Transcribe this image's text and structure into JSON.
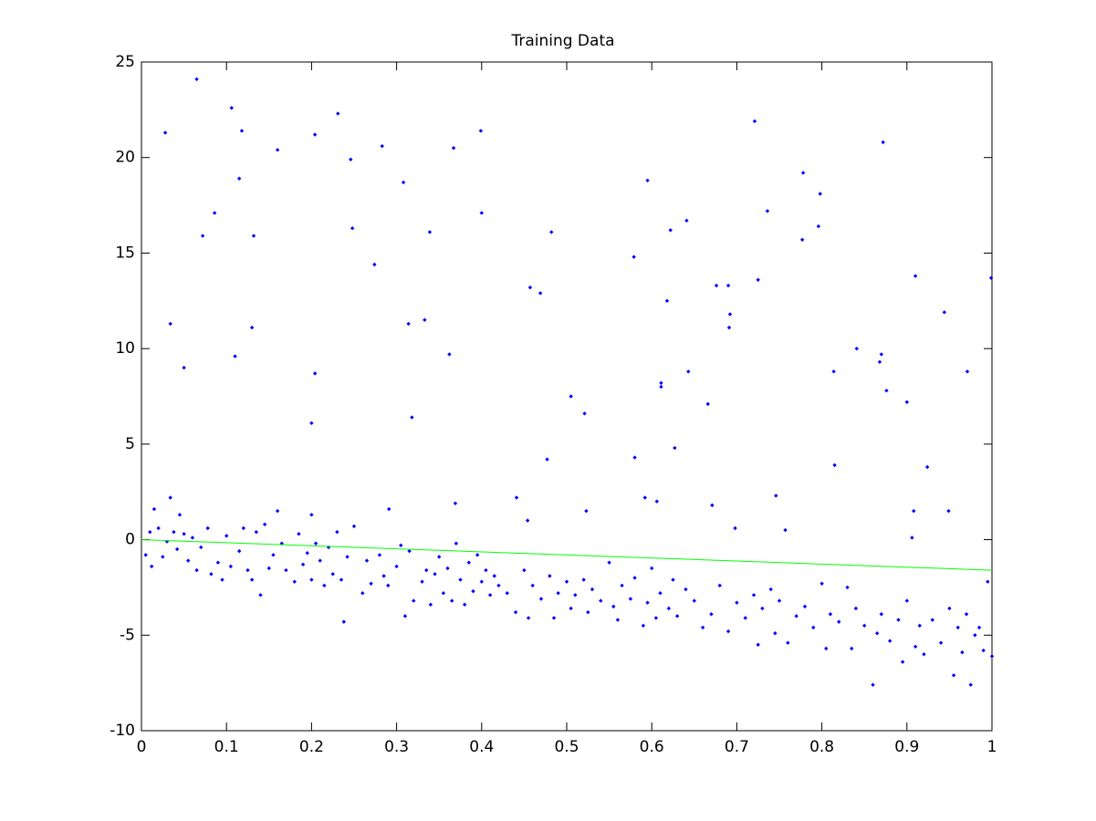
{
  "chart_data": {
    "type": "scatter",
    "title": "Training Data",
    "x": [
      0.065,
      0.028,
      0.106,
      0.118,
      0.115,
      0.086,
      0.072,
      0.132,
      0.034,
      0.05,
      0.11,
      0.13,
      0.16,
      0.204,
      0.231,
      0.246,
      0.248,
      0.283,
      0.274,
      0.308,
      0.339,
      0.333,
      0.314,
      0.318,
      0.204,
      0.2,
      0.367,
      0.399,
      0.4,
      0.362,
      0.482,
      0.457,
      0.469,
      0.477,
      0.505,
      0.521,
      0.579,
      0.595,
      0.622,
      0.641,
      0.618,
      0.611,
      0.611,
      0.643,
      0.627,
      0.58,
      0.666,
      0.676,
      0.69,
      0.692,
      0.691,
      0.721,
      0.725,
      0.736,
      0.778,
      0.777,
      0.798,
      0.796,
      0.814,
      0.815,
      0.841,
      0.872,
      0.87,
      0.868,
      0.876,
      0.91,
      0.944,
      0.9,
      0.924,
      0.971,
      0.999,
      0.671,
      0.698,
      0.746,
      0.757,
      0.908,
      0.906,
      0.949,
      0.606,
      0.592,
      0.523,
      0.454,
      0.441,
      0.369,
      0.034,
      0.2,
      0.291,
      0.005,
      0.01,
      0.012,
      0.015,
      0.02,
      0.025,
      0.03,
      0.038,
      0.042,
      0.045,
      0.05,
      0.055,
      0.06,
      0.065,
      0.07,
      0.078,
      0.082,
      0.09,
      0.095,
      0.1,
      0.105,
      0.115,
      0.12,
      0.125,
      0.13,
      0.135,
      0.14,
      0.145,
      0.15,
      0.155,
      0.16,
      0.165,
      0.17,
      0.18,
      0.185,
      0.19,
      0.195,
      0.2,
      0.205,
      0.21,
      0.215,
      0.22,
      0.225,
      0.23,
      0.235,
      0.238,
      0.242,
      0.25,
      0.26,
      0.265,
      0.27,
      0.28,
      0.285,
      0.29,
      0.3,
      0.305,
      0.31,
      0.315,
      0.32,
      0.33,
      0.335,
      0.34,
      0.345,
      0.35,
      0.355,
      0.36,
      0.365,
      0.37,
      0.375,
      0.38,
      0.385,
      0.39,
      0.395,
      0.4,
      0.405,
      0.41,
      0.415,
      0.42,
      0.43,
      0.44,
      0.45,
      0.455,
      0.46,
      0.47,
      0.48,
      0.485,
      0.49,
      0.5,
      0.505,
      0.51,
      0.52,
      0.525,
      0.53,
      0.54,
      0.55,
      0.555,
      0.56,
      0.565,
      0.575,
      0.58,
      0.59,
      0.595,
      0.6,
      0.605,
      0.61,
      0.62,
      0.625,
      0.63,
      0.64,
      0.65,
      0.66,
      0.67,
      0.68,
      0.69,
      0.7,
      0.71,
      0.72,
      0.725,
      0.73,
      0.74,
      0.745,
      0.75,
      0.76,
      0.77,
      0.78,
      0.79,
      0.8,
      0.805,
      0.81,
      0.82,
      0.83,
      0.835,
      0.84,
      0.85,
      0.86,
      0.865,
      0.87,
      0.88,
      0.89,
      0.895,
      0.9,
      0.91,
      0.915,
      0.92,
      0.93,
      0.94,
      0.95,
      0.955,
      0.96,
      0.965,
      0.97,
      0.975,
      0.98,
      0.985,
      0.99,
      0.995,
      1.0
    ],
    "values": [
      24.1,
      21.3,
      22.6,
      21.4,
      18.9,
      17.1,
      15.9,
      15.9,
      11.3,
      9.0,
      9.6,
      11.1,
      20.4,
      21.2,
      22.3,
      19.9,
      16.3,
      20.6,
      14.4,
      18.7,
      16.1,
      11.5,
      11.3,
      6.4,
      8.7,
      6.1,
      20.5,
      21.4,
      17.1,
      9.7,
      16.1,
      13.2,
      12.9,
      4.2,
      7.5,
      6.6,
      14.8,
      18.8,
      16.2,
      16.7,
      12.5,
      8.2,
      8.0,
      8.8,
      4.8,
      4.3,
      7.1,
      13.3,
      13.3,
      11.8,
      11.1,
      21.9,
      13.6,
      17.2,
      19.2,
      15.7,
      18.1,
      16.4,
      8.8,
      3.9,
      10.0,
      20.8,
      9.7,
      9.3,
      7.8,
      13.8,
      11.9,
      7.2,
      3.8,
      8.8,
      13.7,
      1.8,
      0.6,
      2.3,
      0.5,
      1.5,
      0.1,
      1.5,
      2.0,
      2.2,
      1.5,
      1.0,
      2.2,
      1.9,
      2.2,
      1.3,
      1.6,
      -0.8,
      0.4,
      -1.4,
      1.6,
      0.6,
      -0.9,
      -0.1,
      0.4,
      -0.5,
      1.3,
      0.3,
      -1.1,
      0.1,
      -1.6,
      -0.4,
      0.6,
      -1.8,
      -1.2,
      -2.1,
      0.2,
      -1.4,
      -0.6,
      0.6,
      -1.6,
      -2.1,
      0.4,
      -2.9,
      0.8,
      -1.5,
      -0.8,
      1.5,
      -0.2,
      -1.6,
      -2.2,
      0.3,
      -1.3,
      -0.7,
      -2.1,
      -0.2,
      -1.1,
      -2.4,
      -0.4,
      -1.8,
      0.4,
      -2.1,
      -4.3,
      -0.9,
      0.7,
      -2.8,
      -1.1,
      -2.3,
      -0.8,
      -1.9,
      -2.4,
      -1.4,
      -0.3,
      -4.0,
      -0.6,
      -3.2,
      -2.2,
      -1.6,
      -3.4,
      -1.8,
      -0.9,
      -2.8,
      -1.5,
      -3.2,
      -0.2,
      -2.1,
      -3.4,
      -1.2,
      -2.7,
      -0.8,
      -2.2,
      -1.6,
      -2.9,
      -1.9,
      -2.4,
      -2.8,
      -3.8,
      -1.6,
      -4.1,
      -2.4,
      -3.1,
      -1.9,
      -4.1,
      -2.8,
      -2.2,
      -3.6,
      -2.9,
      -2.1,
      -3.8,
      -2.6,
      -3.2,
      -1.2,
      -3.5,
      -4.2,
      -2.4,
      -3.1,
      -2.0,
      -4.5,
      -3.3,
      -1.5,
      -4.1,
      -2.8,
      -3.6,
      -2.1,
      -4.0,
      -2.6,
      -3.2,
      -4.6,
      -3.9,
      -2.4,
      -4.8,
      -3.3,
      -4.1,
      -2.9,
      -5.5,
      -3.6,
      -2.6,
      -4.9,
      -3.2,
      -5.4,
      -4.0,
      -3.5,
      -4.6,
      -2.3,
      -5.7,
      -3.9,
      -4.3,
      -2.5,
      -5.7,
      -3.6,
      -4.5,
      -7.6,
      -4.9,
      -3.9,
      -5.3,
      -4.2,
      -6.4,
      -3.2,
      -5.6,
      -4.5,
      -6.0,
      -4.2,
      -5.4,
      -3.6,
      -7.1,
      -4.6,
      -5.9,
      -3.9,
      -7.6,
      -5.0,
      -4.6,
      -5.8,
      -2.2,
      -6.1
    ],
    "color": "#0000ff",
    "fit": {
      "x": [
        0,
        1
      ],
      "values": [
        0,
        -1.6
      ],
      "color": "#00ff00"
    },
    "xlim": [
      0,
      1
    ],
    "xticks": [
      0,
      0.1,
      0.2,
      0.3,
      0.4,
      0.5,
      0.6,
      0.7,
      0.8,
      0.9,
      1
    ],
    "ylim": [
      -10,
      25
    ],
    "yticks": [
      -10,
      -5,
      0,
      5,
      10,
      15,
      20,
      25
    ],
    "grid": false
  }
}
